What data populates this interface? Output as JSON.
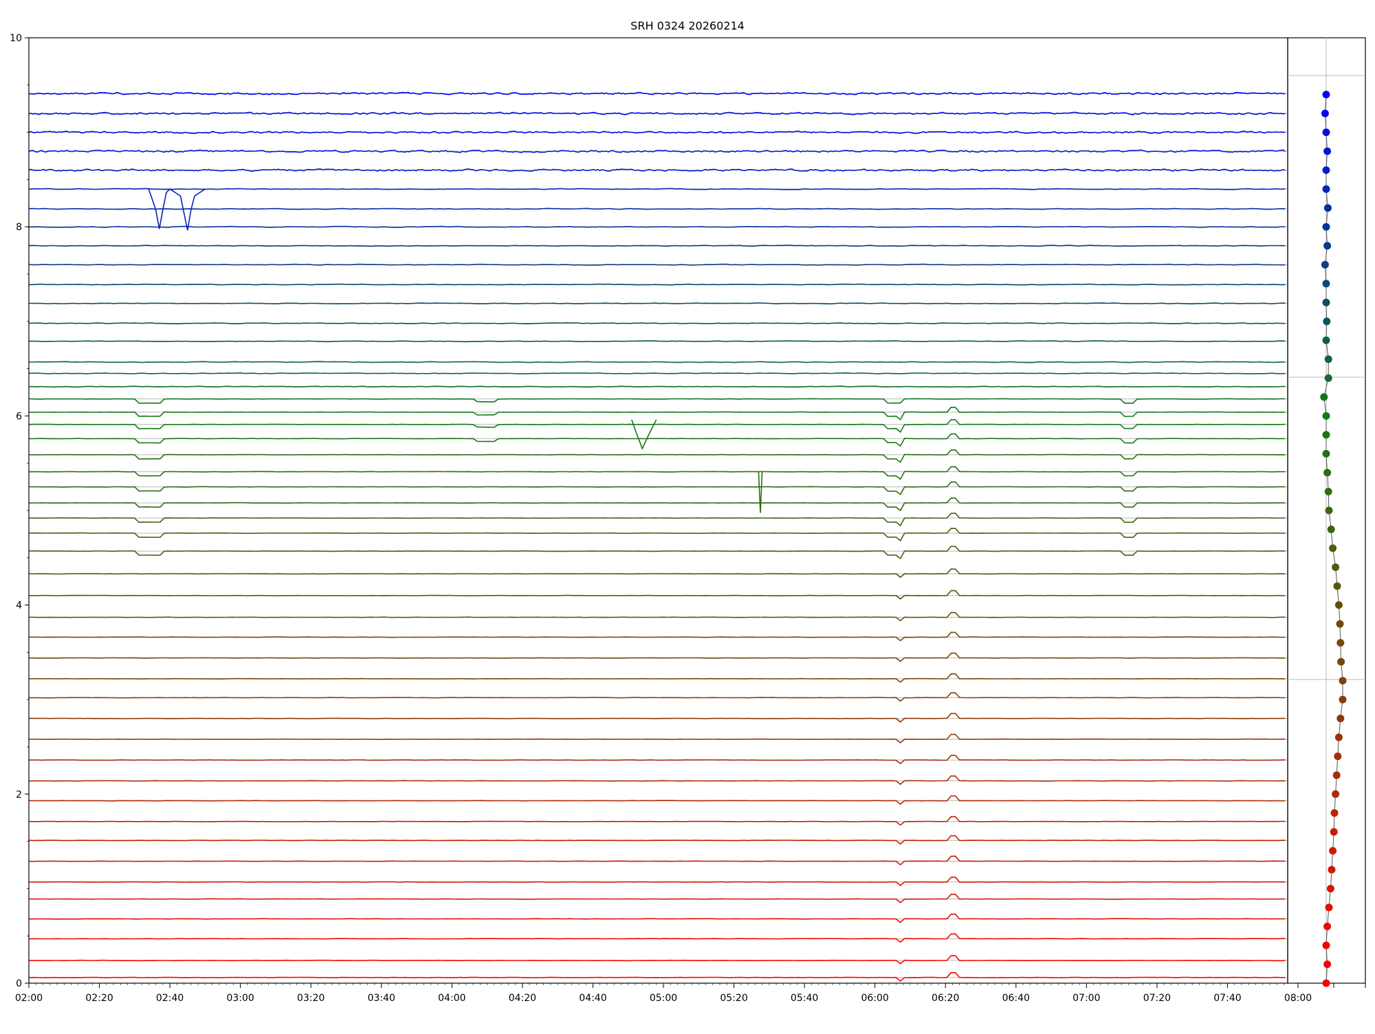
{
  "chart_data": {
    "type": "line",
    "title": "SRH 0324 20260214",
    "xlabel": "",
    "ylabel": "",
    "x_tick_labels": [
      "02:00",
      "02:20",
      "02:40",
      "03:00",
      "03:20",
      "03:40",
      "04:00",
      "04:20",
      "04:40",
      "05:00",
      "05:20",
      "05:40",
      "06:00",
      "06:20",
      "06:40",
      "07:00",
      "07:20",
      "07:40",
      "08:00"
    ],
    "y_ticks": [
      0,
      2,
      4,
      6,
      8,
      10
    ],
    "y_tick_labels": [
      "0",
      "2",
      "4",
      "6",
      "8",
      "10"
    ],
    "xlim": [
      "02:00",
      "07:57"
    ],
    "ylim": [
      0,
      10
    ],
    "grid": "horizontal lines at each trace baseline",
    "trace_colors": {
      "top": "#0000ff",
      "middle": "#127a12",
      "bottom": "#ff0000"
    },
    "trace_baselines": [
      0.06,
      0.24,
      0.47,
      0.68,
      0.89,
      1.07,
      1.29,
      1.51,
      1.71,
      1.93,
      2.14,
      2.36,
      2.58,
      2.8,
      3.02,
      3.22,
      3.44,
      3.66,
      3.87,
      4.1,
      4.33,
      4.57,
      4.76,
      4.92,
      5.08,
      5.25,
      5.41,
      5.59,
      5.76,
      5.91,
      6.04,
      6.18,
      6.31,
      6.45,
      6.57,
      6.79,
      6.98,
      7.19,
      7.39,
      7.6,
      7.8,
      8.0,
      8.19,
      8.4,
      8.6,
      8.8,
      9.0,
      9.2,
      9.41
    ],
    "side_panel": {
      "type": "scatter",
      "x_tick_labels": [
        "08:00"
      ],
      "description_points_y": [
        0.0,
        0.2,
        0.4,
        0.6,
        0.8,
        1.0,
        1.2,
        1.4,
        1.6,
        1.8,
        2.0,
        2.2,
        2.4,
        2.6,
        2.8,
        3.0,
        3.2,
        3.4,
        3.6,
        3.8,
        4.0,
        4.2,
        4.4,
        4.6,
        4.8,
        5.0,
        5.2,
        5.4,
        5.6,
        5.8,
        6.0,
        6.2,
        6.4,
        6.6,
        6.8,
        7.0,
        7.2,
        7.4,
        7.6,
        7.8,
        8.0,
        8.2,
        8.4,
        8.6,
        8.8,
        9.0,
        9.2,
        9.4
      ],
      "points_x": [
        0.0,
        0.02,
        0.0,
        0.02,
        0.05,
        0.08,
        0.1,
        0.12,
        0.14,
        0.15,
        0.17,
        0.19,
        0.21,
        0.23,
        0.26,
        0.3,
        0.3,
        0.27,
        0.26,
        0.25,
        0.23,
        0.2,
        0.17,
        0.12,
        0.09,
        0.05,
        0.04,
        0.02,
        0.0,
        0.0,
        0.0,
        -0.04,
        0.04,
        0.04,
        0.0,
        0.01,
        0.0,
        0.0,
        -0.02,
        0.02,
        0.0,
        0.03,
        0.0,
        0.0,
        0.02,
        0.0,
        -0.02,
        0.0
      ]
    }
  }
}
